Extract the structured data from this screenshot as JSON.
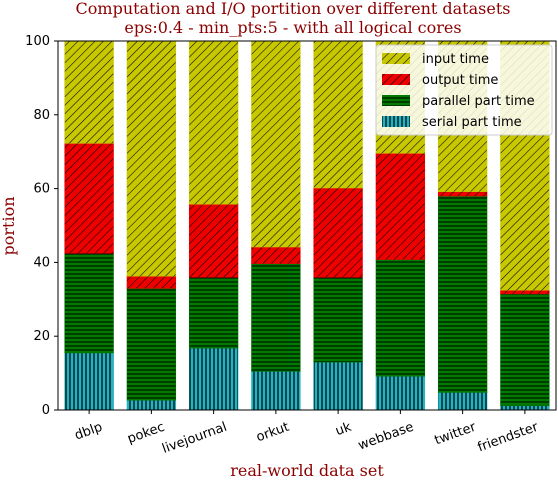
{
  "chart_data": {
    "type": "bar",
    "stacked": true,
    "title": "Computation and I/O portition over different datasets",
    "subtitle": "eps:0.4 - min_pts:5 - with all logical cores",
    "xlabel": "real-world data set",
    "ylabel": "portion",
    "ylim": [
      0,
      100
    ],
    "yticks": [
      "0",
      "20",
      "40",
      "60",
      "80",
      "100"
    ],
    "categories": [
      "dblp",
      "pokec",
      "livejournal",
      "orkut",
      "uk",
      "webbase",
      "twitter",
      "friendster"
    ],
    "legend_position": "top-right",
    "series": [
      {
        "name": "serial part time",
        "color": "#1fb5c4",
        "hatch": "vertical",
        "values": [
          15.5,
          2.7,
          16.8,
          10.5,
          13.0,
          9.2,
          4.8,
          1.2
        ]
      },
      {
        "name": "parallel part time",
        "color": "#007a00",
        "hatch": "horizontal",
        "values": [
          27.0,
          30.3,
          19.2,
          29.2,
          23.0,
          31.6,
          53.2,
          30.3
        ]
      },
      {
        "name": "output time",
        "color": "#ee0000",
        "hatch": "diagonal",
        "values": [
          29.8,
          3.3,
          19.8,
          4.5,
          24.2,
          28.8,
          1.2,
          1.0
        ]
      },
      {
        "name": "input time",
        "color": "#c8c800",
        "hatch": "diagonal",
        "values": [
          27.7,
          63.7,
          44.2,
          55.8,
          39.8,
          30.4,
          40.8,
          67.5
        ]
      }
    ]
  }
}
